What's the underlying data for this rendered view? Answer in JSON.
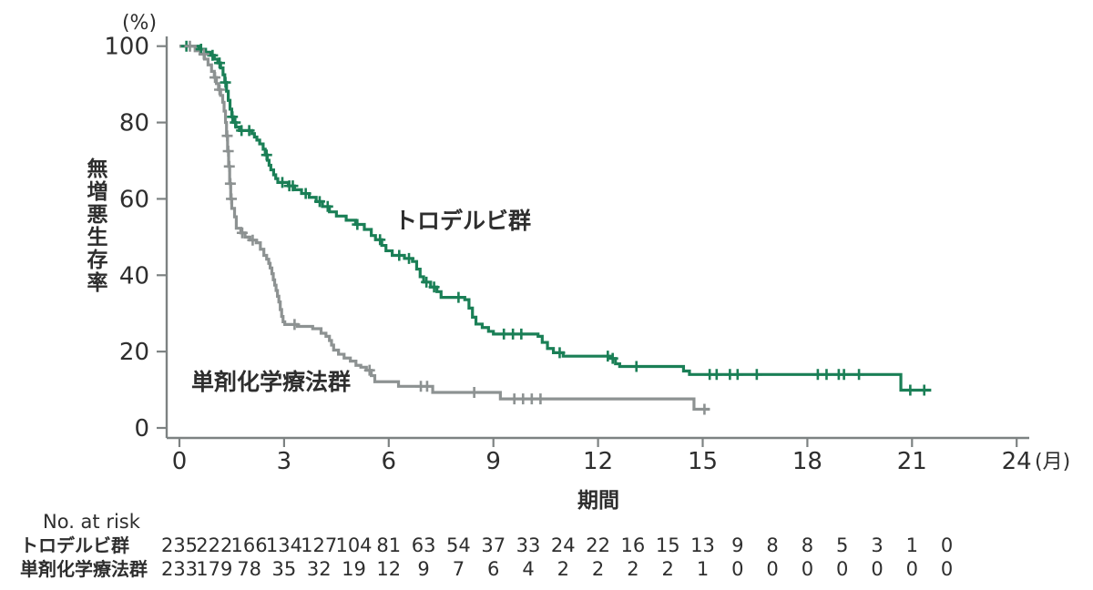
{
  "chart_data": {
    "type": "line",
    "subtype": "kaplan-meier-step",
    "title": "",
    "xlabel": "期間",
    "x_unit": "(月)",
    "ylabel": "無増悪生存率",
    "y_unit": "(%)",
    "xlim": [
      0,
      24.4
    ],
    "ylim": [
      0,
      100
    ],
    "x_ticks": [
      0,
      3,
      6,
      9,
      12,
      15,
      18,
      21,
      24
    ],
    "y_ticks": [
      0,
      20,
      40,
      60,
      80,
      100
    ],
    "grid": false,
    "legend_position": "inline-labels",
    "axis_color": "#7d8282",
    "series": [
      {
        "name": "トロデルビ群",
        "color": "#1a7f56",
        "end": 21.55,
        "steps": [
          [
            0,
            100
          ],
          [
            0.55,
            99.2
          ],
          [
            0.75,
            98.4
          ],
          [
            0.9,
            97.6
          ],
          [
            1.0,
            96.6
          ],
          [
            1.1,
            95.6
          ],
          [
            1.18,
            94.3
          ],
          [
            1.25,
            92.5
          ],
          [
            1.3,
            90.5
          ],
          [
            1.35,
            88.2
          ],
          [
            1.4,
            85.8
          ],
          [
            1.45,
            83.5
          ],
          [
            1.5,
            81.5
          ],
          [
            1.56,
            80.0
          ],
          [
            1.62,
            78.8
          ],
          [
            1.72,
            77.9
          ],
          [
            2.08,
            77.1
          ],
          [
            2.15,
            76.2
          ],
          [
            2.22,
            75.4
          ],
          [
            2.3,
            74.4
          ],
          [
            2.4,
            73.0
          ],
          [
            2.46,
            71.5
          ],
          [
            2.52,
            70.1
          ],
          [
            2.57,
            68.8
          ],
          [
            2.62,
            67.6
          ],
          [
            2.7,
            66.3
          ],
          [
            2.76,
            65.3
          ],
          [
            2.82,
            64.3
          ],
          [
            3.12,
            63.4
          ],
          [
            3.3,
            62.4
          ],
          [
            3.5,
            61.4
          ],
          [
            3.72,
            60.4
          ],
          [
            3.92,
            59.3
          ],
          [
            4.1,
            58.0
          ],
          [
            4.3,
            56.6
          ],
          [
            4.5,
            55.5
          ],
          [
            4.78,
            54.4
          ],
          [
            5.05,
            53.3
          ],
          [
            5.3,
            52.0
          ],
          [
            5.5,
            50.4
          ],
          [
            5.62,
            49.3
          ],
          [
            5.8,
            47.8
          ],
          [
            5.92,
            46.4
          ],
          [
            6.1,
            45.2
          ],
          [
            6.45,
            44.4
          ],
          [
            6.68,
            43.6
          ],
          [
            6.8,
            41.6
          ],
          [
            6.9,
            39.6
          ],
          [
            7.0,
            38.2
          ],
          [
            7.2,
            36.9
          ],
          [
            7.38,
            35.7
          ],
          [
            7.5,
            34.2
          ],
          [
            8.18,
            33.6
          ],
          [
            8.3,
            31.4
          ],
          [
            8.4,
            29.0
          ],
          [
            8.5,
            27.2
          ],
          [
            8.68,
            26.3
          ],
          [
            8.86,
            25.3
          ],
          [
            9.0,
            24.6
          ],
          [
            10.28,
            24.0
          ],
          [
            10.4,
            22.4
          ],
          [
            10.55,
            20.8
          ],
          [
            10.72,
            19.7
          ],
          [
            11.0,
            18.8
          ],
          [
            12.38,
            18.2
          ],
          [
            12.5,
            16.8
          ],
          [
            12.62,
            16.1
          ],
          [
            14.45,
            14.9
          ],
          [
            14.62,
            14.0
          ],
          [
            20.68,
            9.9
          ]
        ],
        "censor_months": [
          0.2,
          0.62,
          0.95,
          1.15,
          1.32,
          1.52,
          1.6,
          1.78,
          2.0,
          2.5,
          2.95,
          3.15,
          3.25,
          3.62,
          4.02,
          4.25,
          5.1,
          5.75,
          6.3,
          6.58,
          7.08,
          7.3,
          8.0,
          9.3,
          9.56,
          9.8,
          10.9,
          12.28,
          12.42,
          13.1,
          15.2,
          15.4,
          15.78,
          16.0,
          16.55,
          18.3,
          18.55,
          18.9,
          19.05,
          19.48,
          20.95,
          21.35
        ]
      },
      {
        "name": "単剤化学療法群",
        "color": "#8d9292",
        "label_color": "#6e7676",
        "end": 15.2,
        "steps": [
          [
            0,
            100
          ],
          [
            0.45,
            98.8
          ],
          [
            0.6,
            97.9
          ],
          [
            0.72,
            96.6
          ],
          [
            0.82,
            95.1
          ],
          [
            0.92,
            93.4
          ],
          [
            1.0,
            91.8
          ],
          [
            1.06,
            90.2
          ],
          [
            1.12,
            88.6
          ],
          [
            1.18,
            87.1
          ],
          [
            1.24,
            85.3
          ],
          [
            1.28,
            83.0
          ],
          [
            1.32,
            80.0
          ],
          [
            1.35,
            76.5
          ],
          [
            1.38,
            72.5
          ],
          [
            1.41,
            68.5
          ],
          [
            1.44,
            64.0
          ],
          [
            1.47,
            60.0
          ],
          [
            1.5,
            57.5
          ],
          [
            1.58,
            55.3
          ],
          [
            1.63,
            52.3
          ],
          [
            1.76,
            51.1
          ],
          [
            1.88,
            50.0
          ],
          [
            2.02,
            49.2
          ],
          [
            2.2,
            48.5
          ],
          [
            2.32,
            46.8
          ],
          [
            2.42,
            45.2
          ],
          [
            2.5,
            44.2
          ],
          [
            2.56,
            43.1
          ],
          [
            2.6,
            41.9
          ],
          [
            2.65,
            40.4
          ],
          [
            2.69,
            38.8
          ],
          [
            2.73,
            37.4
          ],
          [
            2.77,
            36.0
          ],
          [
            2.81,
            34.5
          ],
          [
            2.85,
            33.0
          ],
          [
            2.89,
            31.0
          ],
          [
            2.93,
            29.2
          ],
          [
            2.97,
            27.8
          ],
          [
            3.02,
            27.1
          ],
          [
            3.38,
            26.6
          ],
          [
            3.82,
            26.0
          ],
          [
            4.06,
            24.8
          ],
          [
            4.2,
            24.0
          ],
          [
            4.3,
            22.9
          ],
          [
            4.36,
            21.7
          ],
          [
            4.42,
            20.4
          ],
          [
            4.56,
            19.3
          ],
          [
            4.72,
            18.3
          ],
          [
            4.9,
            17.5
          ],
          [
            5.06,
            16.4
          ],
          [
            5.2,
            15.9
          ],
          [
            5.36,
            15.1
          ],
          [
            5.5,
            13.7
          ],
          [
            5.6,
            12.1
          ],
          [
            6.28,
            10.9
          ],
          [
            7.26,
            9.3
          ],
          [
            9.2,
            7.6
          ],
          [
            14.75,
            4.9
          ]
        ],
        "censor_months": [
          0.3,
          0.7,
          1.02,
          1.15,
          1.37,
          1.4,
          1.43,
          1.46,
          1.49,
          1.8,
          2.1,
          3.3,
          5.45,
          6.92,
          7.1,
          8.45,
          9.6,
          9.85,
          10.1,
          10.35,
          15.05
        ]
      }
    ],
    "at_risk": {
      "title": "No. at risk",
      "months": [
        0,
        1,
        2,
        3,
        4,
        5,
        6,
        7,
        8,
        9,
        10,
        11,
        12,
        13,
        14,
        15,
        16,
        17,
        18,
        19,
        20,
        21,
        22
      ],
      "rows": [
        {
          "name": "トロデルビ群",
          "color": "#1a7f56",
          "values": [
            235,
            222,
            166,
            134,
            127,
            104,
            81,
            63,
            54,
            37,
            33,
            24,
            22,
            16,
            15,
            13,
            9,
            8,
            8,
            5,
            3,
            1,
            0
          ]
        },
        {
          "name": "単剤化学療法群",
          "color": "#6e7676",
          "values": [
            233,
            179,
            78,
            35,
            32,
            19,
            12,
            9,
            7,
            6,
            4,
            2,
            2,
            2,
            2,
            1,
            0,
            0,
            0,
            0,
            0,
            0,
            0
          ]
        }
      ]
    }
  }
}
